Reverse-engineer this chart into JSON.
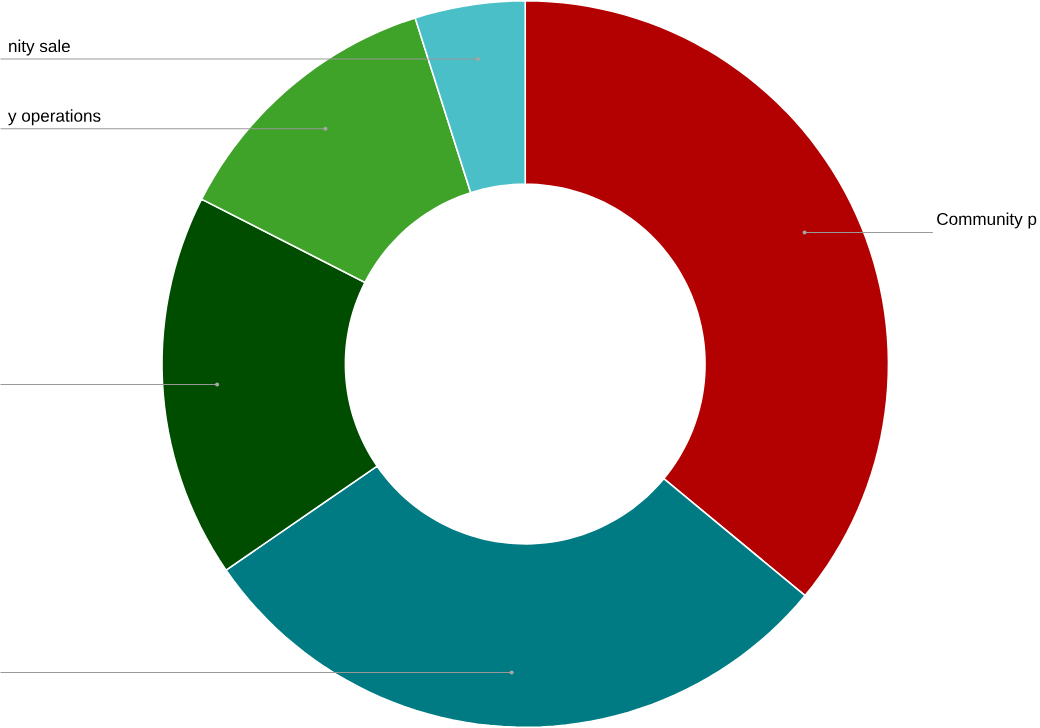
{
  "chart_data": {
    "type": "donut",
    "categories": [
      "Community p",
      null,
      null,
      "y operations",
      "nity sale"
    ],
    "values": [
      36,
      29.4,
      17.1,
      12.6,
      4.9
    ],
    "colors": [
      "#b30000",
      "#007b83",
      "#004d00",
      "#3fa32a",
      "#4bbfc8"
    ]
  }
}
